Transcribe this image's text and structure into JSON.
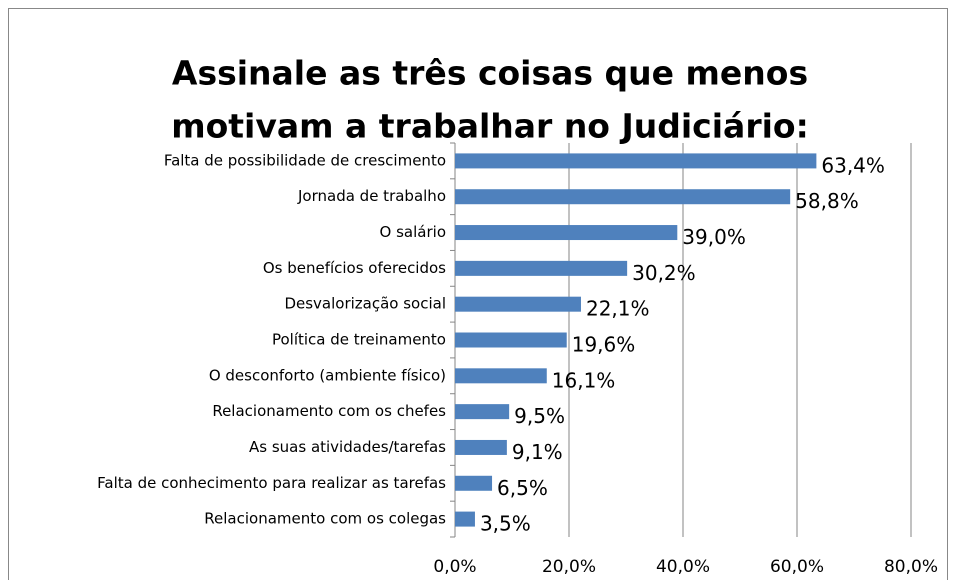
{
  "chart_data": {
    "type": "hbar",
    "title": [
      "Assinale as três coisas que menos",
      "motivam a trabalhar no Judiciário:"
    ],
    "categories": [
      "Falta de possibilidade de crescimento",
      "Jornada de trabalho",
      "O salário",
      "Os benefícios oferecidos",
      "Desvalorização social",
      "Política de treinamento",
      "O desconforto (ambiente físico)",
      "Relacionamento com os chefes",
      "As suas atividades/tarefas",
      "Falta de conhecimento para realizar as tarefas",
      "Relacionamento com os colegas"
    ],
    "values": [
      63.4,
      58.8,
      39.0,
      30.2,
      22.1,
      19.6,
      16.1,
      9.5,
      9.1,
      6.5,
      3.5
    ],
    "value_labels": [
      "63,4%",
      "58,8%",
      "39,0%",
      "30,2%",
      "22,1%",
      "19,6%",
      "16,1%",
      "9,5%",
      "9,1%",
      "6,5%",
      "3,5%"
    ],
    "color": "#4f81bd",
    "xlim": [
      0,
      80
    ],
    "xticks": [
      {
        "value": 0,
        "label": "0,0%"
      },
      {
        "value": 20,
        "label": "20,0%"
      },
      {
        "value": 40,
        "label": "40,0%"
      },
      {
        "value": 60,
        "label": "60,0%"
      },
      {
        "value": 80,
        "label": "80,0%"
      }
    ],
    "grid": true
  }
}
